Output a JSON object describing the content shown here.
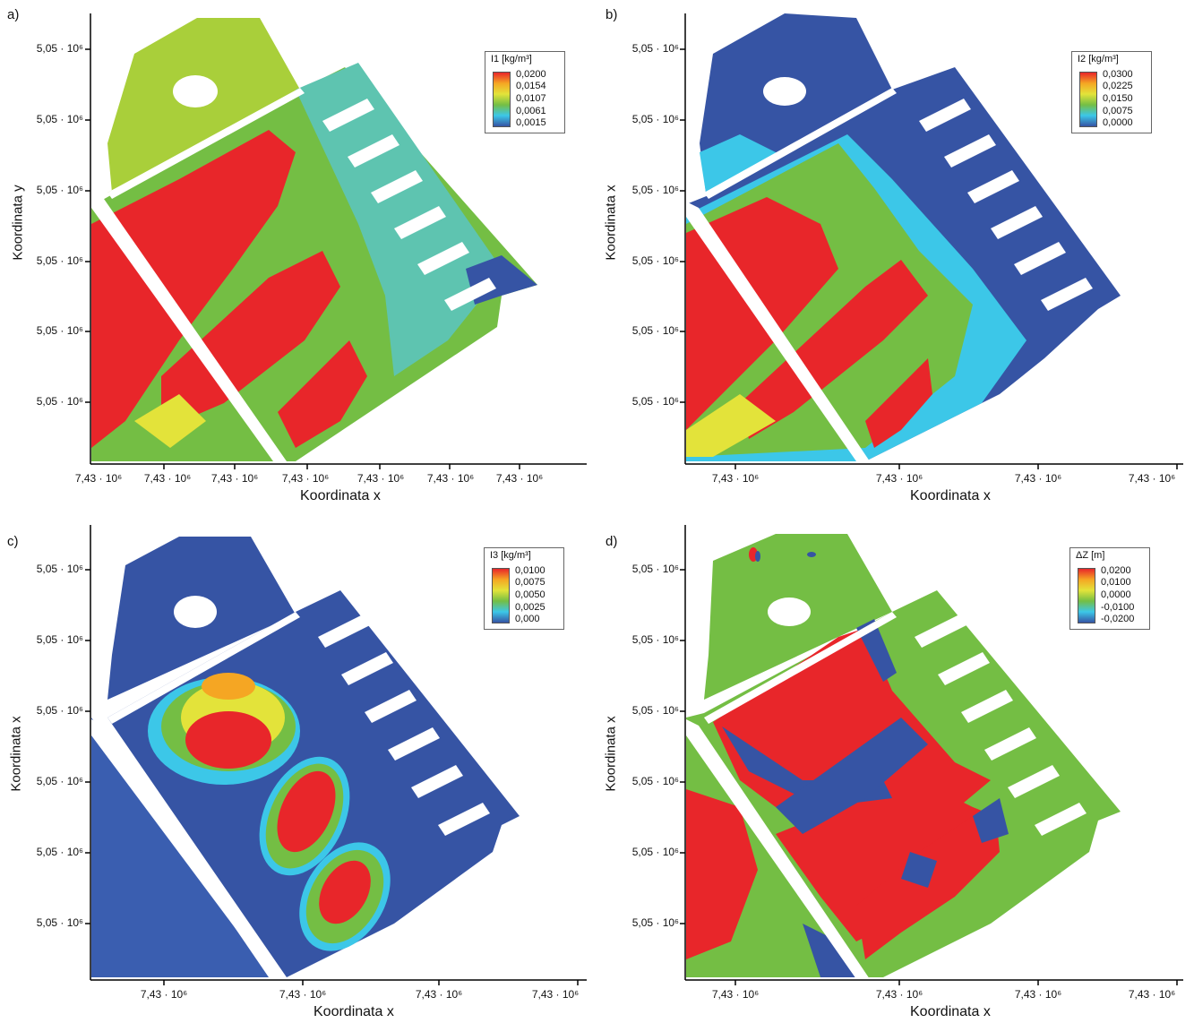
{
  "chart_data": [
    {
      "type": "heatmap",
      "panel": "a)",
      "xlabel": "Koordinata x",
      "ylabel": "Koordinata y",
      "xticks": [
        "7,43 · 10⁶",
        "7,43 · 10⁶",
        "7,43 · 10⁶",
        "7,43 · 10⁶",
        "7,43 · 10⁶",
        "7,43 · 10⁶",
        "7,43 · 10⁶"
      ],
      "yticks": [
        "5,05 · 10⁶",
        "5,05 · 10⁶",
        "5,05 · 10⁶",
        "5,05 · 10⁶",
        "5,05 · 10⁶",
        "5,05 · 10⁶"
      ],
      "legend": {
        "title": "I1 [kg/m³]",
        "values": [
          "0,0200",
          "0,0154",
          "0,0107",
          "0,0061",
          "0,0015"
        ],
        "placement": "top-right"
      }
    },
    {
      "type": "heatmap",
      "panel": "b)",
      "xlabel": "Koordinata x",
      "ylabel": "Koordinata x",
      "xticks": [
        "7,43 · 10⁶",
        "7,43 · 10⁶",
        "7,43 · 10⁶",
        "7,43 · 10⁶"
      ],
      "yticks": [
        "5,05 · 10⁶",
        "5,05 · 10⁶",
        "5,05 · 10⁶",
        "5,05 · 10⁶",
        "5,05 · 10⁶",
        "5,05 · 10⁶"
      ],
      "legend": {
        "title": "I2 [kg/m³]",
        "values": [
          "0,0300",
          "0,0225",
          "0,0150",
          "0,0075",
          "0,0000"
        ],
        "placement": "top-right"
      }
    },
    {
      "type": "heatmap",
      "panel": "c)",
      "xlabel": "Koordinata x",
      "ylabel": "Koordinata x",
      "xticks": [
        "7,43 · 10⁶",
        "7,43 · 10⁶",
        "7,43 · 10⁶",
        "7,43 · 10⁶"
      ],
      "yticks": [
        "5,05 · 10⁶",
        "5,05 · 10⁶",
        "5,05 · 10⁶",
        "5,05 · 10⁶",
        "5,05 · 10⁶",
        "5,05 · 10⁶"
      ],
      "legend": {
        "title": "I3 [kg/m³]",
        "values": [
          "0,0100",
          "0,0075",
          "0,0050",
          "0,0025",
          "0,000"
        ],
        "placement": "top-right"
      }
    },
    {
      "type": "heatmap",
      "panel": "d)",
      "xlabel": "Koordinata x",
      "ylabel": "Koordinata x",
      "xticks": [
        "7,43 · 10⁶",
        "7,43 · 10⁶",
        "7,43 · 10⁶",
        "7,43 · 10⁶"
      ],
      "yticks": [
        "5,05 · 10⁶",
        "5,05 · 10⁶",
        "5,05 · 10⁶",
        "5,05 · 10⁶",
        "5,05 · 10⁶",
        "5,05 · 10⁶"
      ],
      "legend": {
        "title": "ΔZ [m]",
        "values": [
          "0,0200",
          "0,0100",
          "0,0000",
          "-0,0100",
          "-0,0200"
        ],
        "placement": "top-right"
      }
    }
  ],
  "colors": {
    "red": "#e8262a",
    "orange": "#f5a623",
    "yellow": "#e3e33a",
    "green": "#74be44",
    "light_green": "#a9cf3a",
    "cyan": "#3cc7e8",
    "teal": "#5ec4b0",
    "blue": "#3654a4"
  }
}
